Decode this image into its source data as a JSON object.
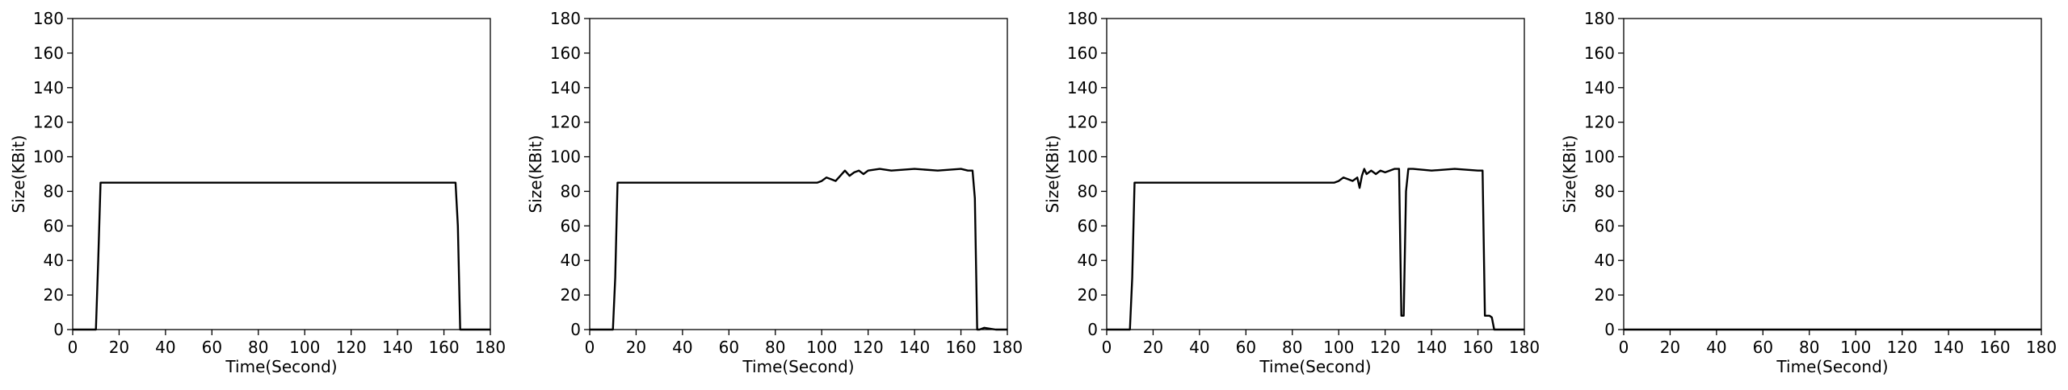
{
  "figure": {
    "background": "#ffffff",
    "line_color": "#000000"
  },
  "chart_data": [
    {
      "type": "line",
      "xlabel": "Time(Second)",
      "ylabel": "Size(KBit)",
      "xlim": [
        0,
        180
      ],
      "ylim": [
        0,
        180
      ],
      "xticks": [
        0,
        20,
        40,
        60,
        80,
        100,
        120,
        140,
        160,
        180
      ],
      "yticks": [
        0,
        20,
        40,
        60,
        80,
        100,
        120,
        140,
        160,
        180
      ],
      "grid": false,
      "series": [
        {
          "x": [
            0,
            10,
            11,
            12,
            14,
            20,
            30,
            40,
            50,
            60,
            70,
            80,
            90,
            100,
            110,
            120,
            130,
            140,
            150,
            160,
            165,
            166,
            167,
            168,
            170,
            175,
            180
          ],
          "y": [
            0,
            0,
            40,
            85,
            85,
            85,
            85,
            85,
            85,
            85,
            85,
            85,
            85,
            85,
            85,
            85,
            85,
            85,
            85,
            85,
            85,
            60,
            0,
            0,
            0,
            0,
            0
          ]
        }
      ]
    },
    {
      "type": "line",
      "xlabel": "Time(Second)",
      "ylabel": "Size(KBit)",
      "xlim": [
        0,
        180
      ],
      "ylim": [
        0,
        180
      ],
      "xticks": [
        0,
        20,
        40,
        60,
        80,
        100,
        120,
        140,
        160,
        180
      ],
      "yticks": [
        0,
        20,
        40,
        60,
        80,
        100,
        120,
        140,
        160,
        180
      ],
      "grid": false,
      "series": [
        {
          "x": [
            0,
            10,
            11,
            12,
            14,
            20,
            30,
            40,
            50,
            60,
            70,
            80,
            90,
            98,
            100,
            102,
            104,
            106,
            108,
            110,
            112,
            114,
            116,
            118,
            120,
            125,
            130,
            140,
            150,
            160,
            163,
            165,
            166,
            167,
            168,
            170,
            175,
            180
          ],
          "y": [
            0,
            0,
            30,
            85,
            85,
            85,
            85,
            85,
            85,
            85,
            85,
            85,
            85,
            85,
            86,
            88,
            87,
            86,
            89,
            92,
            89,
            91,
            92,
            90,
            92,
            93,
            92,
            93,
            92,
            93,
            92,
            92,
            76,
            0,
            0,
            1,
            0,
            0
          ]
        }
      ]
    },
    {
      "type": "line",
      "xlabel": "Time(Second)",
      "ylabel": "Size(KBit)",
      "xlim": [
        0,
        180
      ],
      "ylim": [
        0,
        180
      ],
      "xticks": [
        0,
        20,
        40,
        60,
        80,
        100,
        120,
        140,
        160,
        180
      ],
      "yticks": [
        0,
        20,
        40,
        60,
        80,
        100,
        120,
        140,
        160,
        180
      ],
      "grid": false,
      "series": [
        {
          "x": [
            0,
            10,
            11,
            12,
            14,
            20,
            30,
            40,
            50,
            60,
            70,
            80,
            90,
            98,
            100,
            102,
            104,
            106,
            108,
            109,
            110,
            111,
            112,
            114,
            116,
            118,
            120,
            122,
            124,
            126,
            127,
            128,
            129,
            130,
            132,
            140,
            150,
            160,
            162,
            163,
            165,
            166,
            167,
            170,
            175,
            180
          ],
          "y": [
            0,
            0,
            30,
            85,
            85,
            85,
            85,
            85,
            85,
            85,
            85,
            85,
            85,
            85,
            86,
            88,
            87,
            86,
            88,
            82,
            89,
            93,
            90,
            92,
            90,
            92,
            91,
            92,
            93,
            93,
            8,
            8,
            80,
            93,
            93,
            92,
            93,
            92,
            92,
            8,
            8,
            7,
            0,
            0,
            0,
            0
          ]
        }
      ]
    },
    {
      "type": "line",
      "xlabel": "Time(Second)",
      "ylabel": "Size(KBit)",
      "xlim": [
        0,
        180
      ],
      "ylim": [
        0,
        180
      ],
      "xticks": [
        0,
        20,
        40,
        60,
        80,
        100,
        120,
        140,
        160,
        180
      ],
      "yticks": [
        0,
        20,
        40,
        60,
        80,
        100,
        120,
        140,
        160,
        180
      ],
      "grid": false,
      "series": [
        {
          "x": [
            0,
            30,
            60,
            90,
            120,
            150,
            180
          ],
          "y": [
            0,
            0,
            0,
            0,
            0,
            0,
            0
          ]
        }
      ]
    }
  ]
}
